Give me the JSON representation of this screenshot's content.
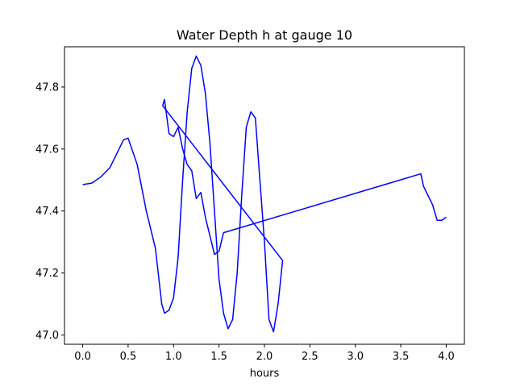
{
  "chart_data": {
    "type": "line",
    "title": "Water Depth h at gauge 10",
    "xlabel": "hours",
    "ylabel": "",
    "xlim": [
      -0.2,
      4.2
    ],
    "ylim": [
      46.97,
      47.93
    ],
    "xticks": [
      0.0,
      0.5,
      1.0,
      1.5,
      2.0,
      2.5,
      3.0,
      3.5,
      4.0
    ],
    "xtick_labels": [
      "0.0",
      "0.5",
      "1.0",
      "1.5",
      "2.0",
      "2.5",
      "3.0",
      "3.5",
      "4.0"
    ],
    "yticks": [
      47.0,
      47.2,
      47.4,
      47.6,
      47.8
    ],
    "ytick_labels": [
      "47.0",
      "47.2",
      "47.4",
      "47.6",
      "47.8"
    ],
    "grid": false,
    "series": [
      {
        "color": "#0000ff",
        "x": [
          0.0,
          0.1,
          0.2,
          0.3,
          0.4,
          0.45,
          0.5,
          0.6,
          0.7,
          0.8,
          0.87,
          0.9,
          0.95,
          1.0,
          1.05,
          1.1,
          1.15,
          1.2,
          1.25,
          1.3,
          1.35,
          1.4,
          1.45,
          1.5,
          1.55,
          1.6,
          1.65,
          1.7,
          1.75,
          1.8,
          1.85,
          1.9,
          1.95,
          2.0,
          2.05,
          2.1,
          2.15,
          2.2,
          2.2,
          0.88,
          0.9,
          0.95,
          1.0,
          1.05,
          1.1,
          1.15,
          1.2,
          1.25,
          1.3,
          1.35,
          1.4,
          1.45,
          1.5,
          1.55,
          1.55,
          3.72,
          3.75,
          3.8,
          3.85,
          3.9,
          3.95,
          4.0
        ],
        "y": [
          47.485,
          47.49,
          47.51,
          47.54,
          47.6,
          47.63,
          47.635,
          47.55,
          47.4,
          47.28,
          47.1,
          47.07,
          47.08,
          47.12,
          47.25,
          47.5,
          47.72,
          47.86,
          47.9,
          47.87,
          47.78,
          47.62,
          47.4,
          47.18,
          47.07,
          47.02,
          47.05,
          47.2,
          47.45,
          47.67,
          47.72,
          47.7,
          47.5,
          47.3,
          47.05,
          47.01,
          47.1,
          47.24,
          47.24,
          47.74,
          47.76,
          47.65,
          47.64,
          47.67,
          47.6,
          47.55,
          47.53,
          47.44,
          47.46,
          47.38,
          47.32,
          47.26,
          47.27,
          47.33,
          47.33,
          47.52,
          47.48,
          47.45,
          47.42,
          47.37,
          47.37,
          47.38
        ]
      }
    ]
  }
}
